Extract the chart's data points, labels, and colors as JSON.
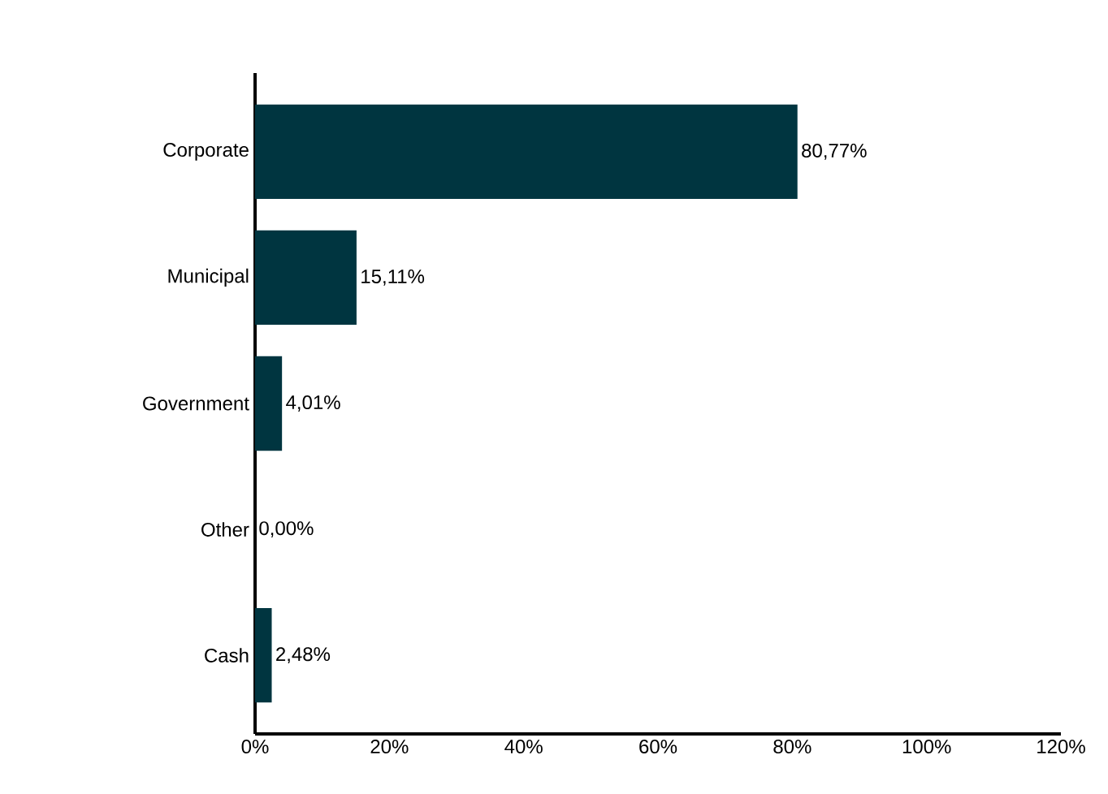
{
  "chart_data": {
    "type": "bar",
    "orientation": "horizontal",
    "categories": [
      "Corporate",
      "Municipal",
      "Government",
      "Other",
      "Cash"
    ],
    "values": [
      80.77,
      15.11,
      4.01,
      0.0,
      2.48
    ],
    "value_labels": [
      "80,77%",
      "15,11%",
      "4,01%",
      "0,00%",
      "2,48%"
    ],
    "color": "#003540",
    "xlim": [
      0,
      120
    ],
    "xticks": [
      {
        "value": 0,
        "label": "0%"
      },
      {
        "value": 20,
        "label": "20%"
      },
      {
        "value": 40,
        "label": "40%"
      },
      {
        "value": 60,
        "label": "60%"
      },
      {
        "value": 80,
        "label": "80%"
      },
      {
        "value": 100,
        "label": "100%"
      },
      {
        "value": 120,
        "label": "120%"
      }
    ],
    "grid": false
  }
}
